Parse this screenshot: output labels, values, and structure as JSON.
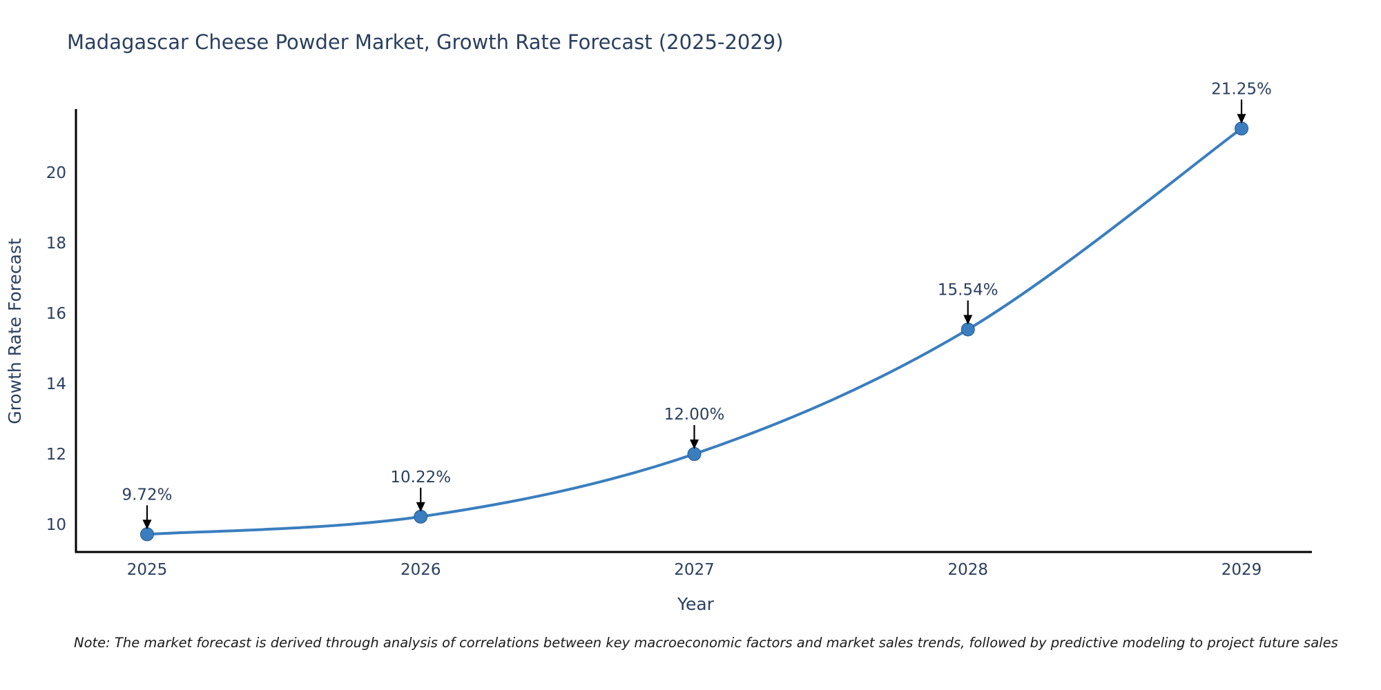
{
  "page": {
    "background_color": "#ffffff"
  },
  "chart_data": {
    "type": "line",
    "title": "Madagascar Cheese Powder Market, Growth Rate Forecast (2025-2029)",
    "xlabel": "Year",
    "ylabel": "Growth Rate Forecast",
    "x": [
      2025,
      2026,
      2027,
      2028,
      2029
    ],
    "y": [
      9.72,
      10.22,
      12.0,
      15.54,
      21.25
    ],
    "point_labels": [
      "9.72%",
      "10.22%",
      "12.00%",
      "15.54%",
      "21.25%"
    ],
    "xtick_labels": [
      "2025",
      "2026",
      "2027",
      "2028",
      "2029"
    ],
    "ytick_values": [
      10,
      12,
      14,
      16,
      18,
      20
    ],
    "xlim": [
      2024.74,
      2029.26
    ],
    "ylim": [
      9.22,
      21.76
    ],
    "grid": false,
    "legend": "none",
    "line_shape": "spline",
    "line_color": "#3a7ebf",
    "marker_color": "#3a7ebf",
    "marker_edge_color": "#24598c",
    "axis_line_color": "#000000",
    "text_color": "#2a3f5f",
    "annotation_arrow_color": "#000000"
  },
  "note": {
    "text": "Note: The market forecast is derived through analysis of correlations between key macroeconomic factors and market sales trends, followed by predictive modeling to project future sales"
  }
}
